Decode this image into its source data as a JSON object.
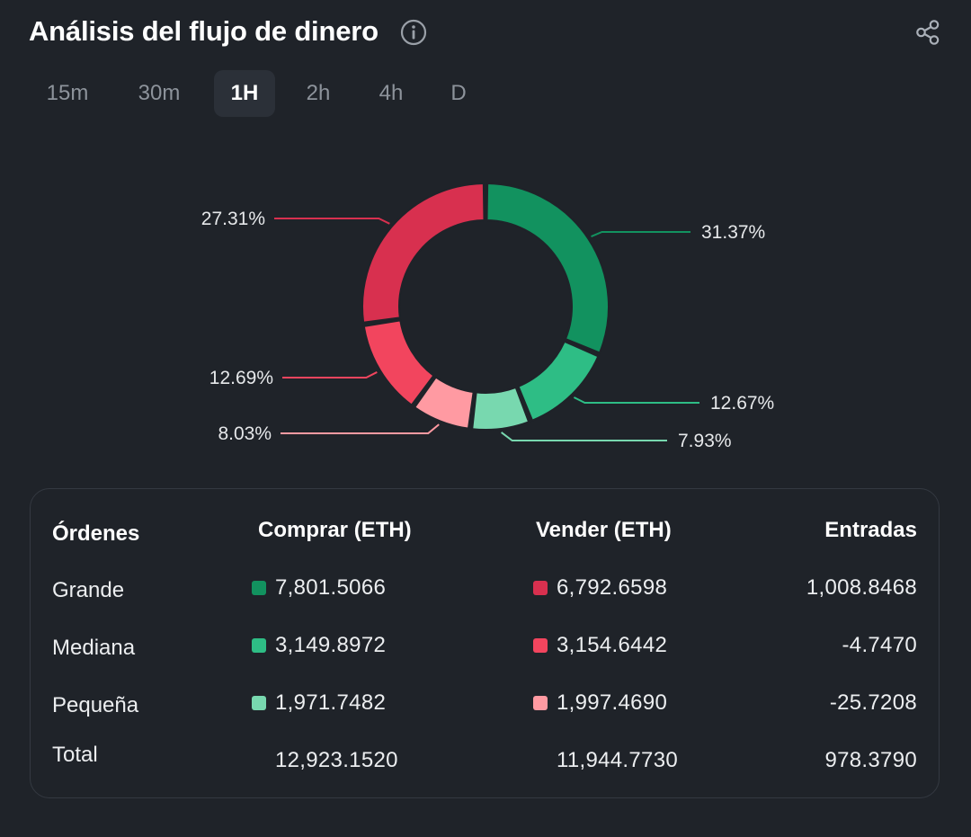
{
  "header": {
    "title": "Análisis del flujo de dinero",
    "info_icon": "info-circle-icon",
    "share_icon": "share-icon"
  },
  "tabs": [
    {
      "label": "15m",
      "active": false
    },
    {
      "label": "30m",
      "active": false
    },
    {
      "label": "1H",
      "active": true
    },
    {
      "label": "2h",
      "active": false
    },
    {
      "label": "4h",
      "active": false
    },
    {
      "label": "D",
      "active": false
    }
  ],
  "chart_data": {
    "type": "pie",
    "slices": [
      {
        "label": "31.37%",
        "value": 31.37,
        "color": "#12925f"
      },
      {
        "label": "12.67%",
        "value": 12.67,
        "color": "#2ebd85"
      },
      {
        "label": "7.93%",
        "value": 7.93,
        "color": "#78d8af"
      },
      {
        "label": "8.03%",
        "value": 8.03,
        "color": "#ff9aa2"
      },
      {
        "label": "12.69%",
        "value": 12.69,
        "color": "#f2455e"
      },
      {
        "label": "27.31%",
        "value": 27.31,
        "color": "#d8304f"
      }
    ]
  },
  "table": {
    "headers": {
      "orders": "Órdenes",
      "buy": "Comprar (ETH)",
      "sell": "Vender (ETH)",
      "inflow": "Entradas"
    },
    "rows": [
      {
        "name": "Grande",
        "buy": "7,801.5066",
        "sell": "6,792.6598",
        "inflow": "1,008.8468",
        "buy_color": "#12925f",
        "sell_color": "#d8304f"
      },
      {
        "name": "Mediana",
        "buy": "3,149.8972",
        "sell": "3,154.6442",
        "inflow": "-4.7470",
        "buy_color": "#2ebd85",
        "sell_color": "#f2455e"
      },
      {
        "name": "Pequeña",
        "buy": "1,971.7482",
        "sell": "1,997.4690",
        "inflow": "-25.7208",
        "buy_color": "#78d8af",
        "sell_color": "#ff9aa2"
      }
    ],
    "total": {
      "name": "Total",
      "buy": "12,923.1520",
      "sell": "11,944.7730",
      "inflow": "978.3790"
    }
  }
}
